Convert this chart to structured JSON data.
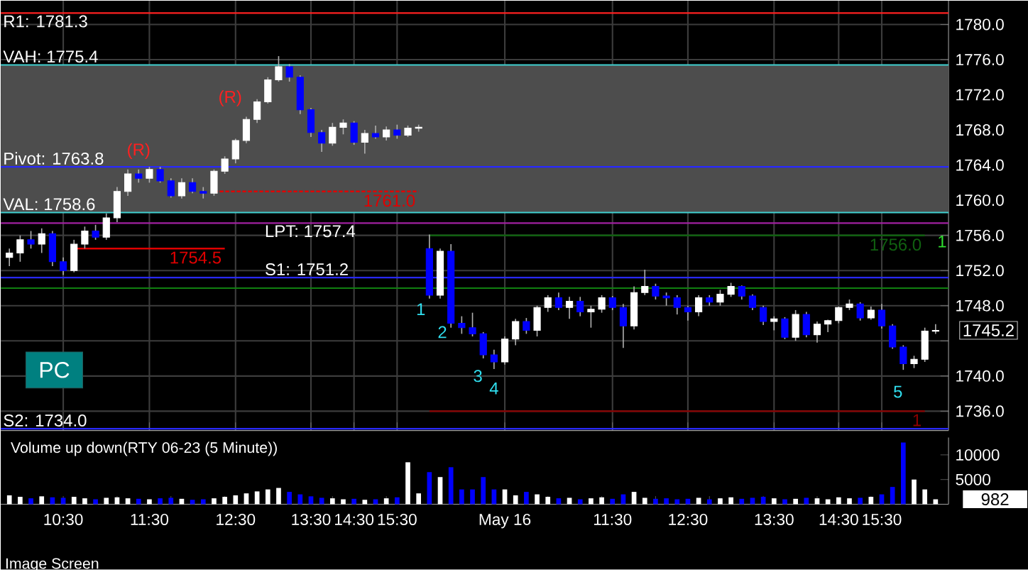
{
  "chart_data": [
    {
      "type": "candlestick",
      "categories": [
        null,
        null,
        null,
        null,
        null,
        "10:30",
        null,
        null,
        null,
        null,
        null,
        null,
        null,
        "11:30",
        null,
        null,
        null,
        null,
        null,
        null,
        null,
        "12:30",
        null,
        null,
        null,
        null,
        null,
        null,
        "13:30",
        null,
        null,
        null,
        "14:30",
        null,
        null,
        null,
        "15:30",
        null,
        null,
        null,
        null,
        null,
        null,
        null,
        null,
        null,
        "May 16",
        null,
        null,
        null,
        null,
        null,
        null,
        null,
        null,
        null,
        "11:30",
        null,
        null,
        null,
        null,
        null,
        null,
        "12:30",
        null,
        null,
        null,
        null,
        null,
        null,
        null,
        "13:30",
        null,
        null,
        null,
        null,
        null,
        "14:30",
        null,
        null,
        null,
        "15:30",
        null,
        null,
        null,
        null,
        null
      ],
      "ohlc": [
        [
          1753.5,
          1754.5,
          1752.5,
          1754
        ],
        [
          1754,
          1756,
          1753,
          1755.5
        ],
        [
          1755.5,
          1756.5,
          1754.5,
          1755
        ],
        [
          1755,
          1756.8,
          1754,
          1756.2
        ],
        [
          1756.2,
          1756.5,
          1752.5,
          1753
        ],
        [
          1753,
          1753.5,
          1751.5,
          1752
        ],
        [
          1752,
          1755.5,
          1751.8,
          1755
        ],
        [
          1755,
          1757,
          1754.5,
          1756.5
        ],
        [
          1756.5,
          1757.2,
          1755.5,
          1755.8
        ],
        [
          1755.8,
          1758.5,
          1755.5,
          1758
        ],
        [
          1758,
          1761.5,
          1757.5,
          1761
        ],
        [
          1761,
          1763.5,
          1760.5,
          1763
        ],
        [
          1763,
          1763.5,
          1762,
          1762.5
        ],
        [
          1762.5,
          1763.8,
          1762,
          1763.5
        ],
        [
          1763.5,
          1763.8,
          1762,
          1762.2
        ],
        [
          1762.2,
          1762.5,
          1760.3,
          1760.5
        ],
        [
          1760.5,
          1762.5,
          1760.2,
          1762
        ],
        [
          1762,
          1762.5,
          1760.8,
          1761
        ],
        [
          1761,
          1761.5,
          1760.2,
          1760.8
        ],
        [
          1760.8,
          1763.5,
          1760.5,
          1763.3
        ],
        [
          1763.3,
          1765,
          1763,
          1764.7
        ],
        [
          1764.7,
          1767,
          1764.2,
          1766.8
        ],
        [
          1766.8,
          1769.5,
          1766.5,
          1769.2
        ],
        [
          1769.2,
          1771.5,
          1768.8,
          1771.2
        ],
        [
          1771.2,
          1774,
          1771,
          1773.7
        ],
        [
          1773.7,
          1776.4,
          1773.5,
          1775.2
        ],
        [
          1775.2,
          1775.5,
          1773.5,
          1774
        ],
        [
          1774,
          1774.2,
          1769.8,
          1770.3
        ],
        [
          1770.3,
          1770.5,
          1767.2,
          1767.7
        ],
        [
          1767.7,
          1768,
          1765.5,
          1766.5
        ],
        [
          1766.5,
          1768.8,
          1766.2,
          1768.3
        ],
        [
          1768.3,
          1769.2,
          1767.5,
          1768.8
        ],
        [
          1768.8,
          1769,
          1766.3,
          1766.6
        ],
        [
          1766.6,
          1768,
          1765.3,
          1767.6
        ],
        [
          1767.6,
          1768.5,
          1767,
          1767.2
        ],
        [
          1767.2,
          1768.4,
          1766.8,
          1768
        ],
        [
          1768,
          1768.6,
          1767,
          1767.4
        ],
        [
          1767.4,
          1768.5,
          1767.2,
          1768.2
        ],
        [
          1768.2,
          1768.6,
          1767.8,
          1768.3
        ],
        [
          1754.5,
          1756.1,
          1748.8,
          1749.2
        ],
        [
          1749.2,
          1754.5,
          1748.8,
          1754.2
        ],
        [
          1754.2,
          1755,
          1745.5,
          1746
        ],
        [
          1746,
          1746.8,
          1744.8,
          1745.5
        ],
        [
          1745.5,
          1747.2,
          1744.5,
          1744.8
        ],
        [
          1744.8,
          1745,
          1742,
          1742.4
        ],
        [
          1742.4,
          1743,
          1740.8,
          1741.6
        ],
        [
          1741.6,
          1744.5,
          1741.3,
          1744.2
        ],
        [
          1744.2,
          1746.5,
          1743.5,
          1746.2
        ],
        [
          1746.2,
          1746.6,
          1744.8,
          1745.2
        ],
        [
          1745.2,
          1748,
          1744.5,
          1747.8
        ],
        [
          1747.8,
          1749.2,
          1747.3,
          1748.9
        ],
        [
          1748.9,
          1749.5,
          1747.5,
          1747.8
        ],
        [
          1747.8,
          1749,
          1746.5,
          1748.5
        ],
        [
          1748.5,
          1749,
          1746.8,
          1747.3
        ],
        [
          1747.3,
          1748,
          1745.5,
          1747.6
        ],
        [
          1747.6,
          1749.2,
          1747.2,
          1748.9
        ],
        [
          1748.9,
          1749.1,
          1747.5,
          1747.8
        ],
        [
          1747.8,
          1748.2,
          1743.2,
          1745.7
        ],
        [
          1745.7,
          1750.2,
          1745.3,
          1749.5
        ],
        [
          1749.5,
          1752.1,
          1749.2,
          1750.2
        ],
        [
          1750.2,
          1750.5,
          1748.7,
          1749.1
        ],
        [
          1749.1,
          1749.5,
          1748,
          1748.9
        ],
        [
          1748.9,
          1749.2,
          1747,
          1747.8
        ],
        [
          1747.8,
          1748,
          1746.3,
          1747.3
        ],
        [
          1747.3,
          1749.2,
          1746.8,
          1748.9
        ],
        [
          1748.9,
          1749.2,
          1748,
          1748.4
        ],
        [
          1748.4,
          1749.8,
          1748,
          1749.3
        ],
        [
          1749.3,
          1750.6,
          1749,
          1750.2
        ],
        [
          1750.2,
          1750.3,
          1748.7,
          1749.1
        ],
        [
          1749.1,
          1749.3,
          1747.5,
          1747.8
        ],
        [
          1747.8,
          1748,
          1745.8,
          1746.2
        ],
        [
          1746.2,
          1746.8,
          1745.2,
          1746.5
        ],
        [
          1746.5,
          1746.7,
          1744.2,
          1744.4
        ],
        [
          1744.4,
          1747.5,
          1744,
          1747
        ],
        [
          1747,
          1747.3,
          1744.4,
          1744.7
        ],
        [
          1744.7,
          1746.2,
          1743.8,
          1745.9
        ],
        [
          1745.9,
          1746.4,
          1745,
          1746.3
        ],
        [
          1746.3,
          1747.9,
          1746,
          1747.8
        ],
        [
          1747.8,
          1748.7,
          1747.5,
          1748.2
        ],
        [
          1748.2,
          1748.4,
          1746.3,
          1746.6
        ],
        [
          1746.6,
          1747.9,
          1746.4,
          1747.5
        ],
        [
          1747.5,
          1748.2,
          1745.4,
          1745.7
        ],
        [
          1745.7,
          1745.9,
          1743.1,
          1743.3
        ],
        [
          1743.3,
          1743.5,
          1740.7,
          1741.4
        ],
        [
          1741.4,
          1742.3,
          1740.9,
          1741.9
        ],
        [
          1741.9,
          1745.5,
          1741.6,
          1745.1
        ],
        [
          1745.1,
          1745.9,
          1744.8,
          1745.2
        ]
      ],
      "colors": [
        "#ffffff",
        "#ffffff",
        "#0000ff",
        "#ffffff",
        "#0000ff",
        "#0000ff",
        "#ffffff",
        "#ffffff",
        "#0000ff",
        "#ffffff",
        "#ffffff",
        "#ffffff",
        "#0000ff",
        "#ffffff",
        "#0000ff",
        "#0000ff",
        "#ffffff",
        "#0000ff",
        "#0000ff",
        "#ffffff",
        "#ffffff",
        "#ffffff",
        "#ffffff",
        "#ffffff",
        "#ffffff",
        "#ffffff",
        "#0000ff",
        "#0000ff",
        "#0000ff",
        "#0000ff",
        "#ffffff",
        "#ffffff",
        "#0000ff",
        "#ffffff",
        "#0000ff",
        "#ffffff",
        "#0000ff",
        "#ffffff",
        "#ffffff",
        "#0000ff",
        "#ffffff",
        "#0000ff",
        "#0000ff",
        "#0000ff",
        "#0000ff",
        "#0000ff",
        "#ffffff",
        "#ffffff",
        "#0000ff",
        "#ffffff",
        "#ffffff",
        "#0000ff",
        "#ffffff",
        "#0000ff",
        "#ffffff",
        "#ffffff",
        "#0000ff",
        "#0000ff",
        "#ffffff",
        "#ffffff",
        "#0000ff",
        "#0000ff",
        "#0000ff",
        "#0000ff",
        "#ffffff",
        "#0000ff",
        "#ffffff",
        "#ffffff",
        "#0000ff",
        "#0000ff",
        "#0000ff",
        "#ffffff",
        "#0000ff",
        "#ffffff",
        "#0000ff",
        "#ffffff",
        "#ffffff",
        "#ffffff",
        "#ffffff",
        "#0000ff",
        "#ffffff",
        "#0000ff",
        "#0000ff",
        "#0000ff",
        "#ffffff",
        "#ffffff",
        "#ffffff"
      ],
      "ylim": [
        1733.8,
        1782.7
      ],
      "yticks": [
        {
          "value": 1736,
          "label": "1736.0"
        },
        {
          "value": 1740,
          "label": "1740.0"
        },
        {
          "value": 1744,
          "label": null
        },
        {
          "value": 1748,
          "label": "1748.0"
        },
        {
          "value": 1752,
          "label": "1752.0"
        },
        {
          "value": 1756,
          "label": "1756.0"
        },
        {
          "value": 1760,
          "label": "1760.0"
        },
        {
          "value": 1764,
          "label": "1764.0"
        },
        {
          "value": 1768,
          "label": "1768.0"
        },
        {
          "value": 1772,
          "label": "1772.0"
        },
        {
          "value": 1776,
          "label": "1776.0"
        },
        {
          "value": 1780,
          "label": "1780.0"
        }
      ],
      "grid": true,
      "bands": [
        {
          "axis": "y",
          "from": 1758.6,
          "to": 1775.4,
          "color": "#4d4d4d"
        }
      ],
      "ref_lines": [
        {
          "axis": "y",
          "value": 1781.3,
          "label": "R1: 1781.3",
          "color": "#ff2020"
        },
        {
          "axis": "y",
          "value": 1775.4,
          "label": "VAH: 1775.4",
          "color": "#40d0d0"
        },
        {
          "axis": "y",
          "value": 1763.8,
          "label": "Pivot: 1763.8",
          "color": "#2828ff"
        },
        {
          "axis": "y",
          "value": 1758.6,
          "label": "VAL: 1758.6",
          "color": "#40d0d0"
        },
        {
          "axis": "y",
          "value": 1757.4,
          "label": "LPT: 1757.4",
          "color": "#a020a0"
        },
        {
          "axis": "y",
          "value": 1751.2,
          "label": "S1: 1751.2",
          "color": "#2828ff"
        },
        {
          "axis": "y",
          "value": 1750.0,
          "color": "#108010"
        },
        {
          "axis": "y",
          "value": 1734.0,
          "label": "S2: 1734.0",
          "color": "#2828ff"
        }
      ],
      "series": [
        {
          "type": "line",
          "name": "1754.5",
          "color": "#e00000",
          "line_style": "solid",
          "values": [
            null,
            null,
            null,
            null,
            null,
            null,
            1754.5,
            1754.5,
            1754.5,
            1754.5,
            1754.5,
            1754.5,
            1754.5,
            1754.5,
            1754.5,
            1754.5,
            1754.5,
            1754.5,
            1754.5,
            1754.5,
            1754.5,
            null,
            null,
            null,
            null,
            null,
            null,
            null,
            null,
            null,
            null,
            null,
            null,
            null,
            null,
            null,
            null,
            null,
            null,
            null,
            null,
            null,
            null,
            null,
            null,
            null,
            null,
            null,
            null,
            null,
            null,
            null,
            null,
            null,
            null,
            null,
            null,
            null,
            null,
            null,
            null,
            null,
            null,
            null,
            null,
            null,
            null,
            null,
            null,
            null,
            null,
            null,
            null,
            null,
            null,
            null,
            null,
            null,
            null,
            null,
            null,
            null,
            null,
            null,
            null,
            null,
            null
          ]
        },
        {
          "type": "line",
          "name": "1761.0",
          "color": "#e00000",
          "line_style": "dashed",
          "values": [
            null,
            null,
            null,
            null,
            null,
            null,
            null,
            null,
            null,
            null,
            null,
            null,
            null,
            null,
            null,
            null,
            null,
            null,
            null,
            1761,
            1761,
            1761,
            1761,
            1761,
            1761,
            1761,
            1761,
            1761,
            1761,
            1761,
            1761,
            1761,
            1761,
            1761,
            1761,
            1761,
            1761,
            1761,
            1761,
            null,
            null,
            null,
            null,
            null,
            null,
            null,
            null,
            null,
            null,
            null,
            null,
            null,
            null,
            null,
            null,
            null,
            null,
            null,
            null,
            null,
            null,
            null,
            null,
            null,
            null,
            null,
            null,
            null,
            null,
            null,
            null,
            null,
            null,
            null,
            null,
            null,
            null,
            null,
            null,
            null,
            null,
            null,
            null,
            null,
            null,
            null,
            null
          ]
        },
        {
          "type": "line",
          "name": "1756.0",
          "color": "#106010",
          "line_style": "solid",
          "values": [
            null,
            null,
            null,
            null,
            null,
            null,
            null,
            null,
            null,
            null,
            null,
            null,
            null,
            null,
            null,
            null,
            null,
            null,
            null,
            null,
            null,
            null,
            null,
            null,
            null,
            null,
            null,
            null,
            null,
            null,
            null,
            null,
            null,
            null,
            null,
            null,
            null,
            null,
            null,
            1756,
            1756,
            1756,
            1756,
            1756,
            1756,
            1756,
            1756,
            1756,
            1756,
            1756,
            1756,
            1756,
            1756,
            1756,
            1756,
            1756,
            1756,
            1756,
            1756,
            1756,
            1756,
            1756,
            1756,
            1756,
            1756,
            1756,
            1756,
            1756,
            1756,
            1756,
            1756,
            1756,
            1756,
            1756,
            1756,
            1756,
            1756,
            1756,
            1756,
            1756,
            1756,
            1756,
            1756,
            1756,
            1756,
            1756,
            null
          ]
        },
        {
          "type": "line",
          "name": "1",
          "color": "#8b0000",
          "line_style": "solid",
          "values": [
            null,
            null,
            null,
            null,
            null,
            null,
            null,
            null,
            null,
            null,
            null,
            null,
            null,
            null,
            null,
            null,
            null,
            null,
            null,
            null,
            null,
            null,
            null,
            null,
            null,
            null,
            null,
            null,
            null,
            null,
            null,
            null,
            null,
            null,
            null,
            null,
            null,
            null,
            null,
            1736,
            1736,
            1736,
            1736,
            1736,
            1736,
            1736,
            1736,
            1736,
            1736,
            1736,
            1736,
            1736,
            1736,
            1736,
            1736,
            1736,
            1736,
            1736,
            1736,
            1736,
            1736,
            1736,
            1736,
            1736,
            1736,
            1736,
            1736,
            1736,
            1736,
            1736,
            1736,
            1736,
            1736,
            1736,
            1736,
            1736,
            1736,
            1736,
            1736,
            1736,
            1736,
            1736,
            1736,
            1736,
            1736,
            1736,
            null
          ]
        }
      ],
      "annotations": [
        "PC",
        "(R)",
        "(R)",
        "1",
        "2",
        "3",
        "4",
        "5",
        "1",
        "1745.2"
      ]
    },
    {
      "type": "bar",
      "title": "Volume up down(RTY 06-23 (5 Minute))",
      "tick_labels": "y",
      "categories": [
        null,
        null,
        null,
        null,
        null,
        null,
        null,
        null,
        null,
        null,
        null,
        null,
        null,
        null,
        null,
        null,
        null,
        null,
        null,
        null,
        null,
        null,
        null,
        null,
        null,
        null,
        null,
        null,
        null,
        null,
        null,
        null,
        null,
        null,
        null,
        null,
        null,
        null,
        null,
        null,
        null,
        null,
        null,
        null,
        null,
        null,
        null,
        null,
        null,
        null,
        null,
        null,
        null,
        null,
        null,
        null,
        null,
        null,
        null,
        null,
        null,
        null,
        null,
        null,
        null,
        null,
        null,
        null,
        null,
        null,
        null,
        null,
        null,
        null,
        null,
        null,
        null,
        null,
        null,
        null,
        null,
        null,
        null,
        null,
        null,
        null,
        null
      ],
      "values": [
        1800,
        1500,
        1200,
        1600,
        1400,
        1300,
        1500,
        1200,
        1000,
        1300,
        1400,
        1200,
        1100,
        1000,
        1200,
        1300,
        1100,
        900,
        1000,
        1200,
        1500,
        1800,
        2200,
        2600,
        3000,
        3300,
        2500,
        2000,
        1600,
        1300,
        1200,
        1000,
        1100,
        900,
        1000,
        1200,
        1400,
        8500,
        2200,
        6500,
        5500,
        7500,
        3000,
        3000,
        5500,
        3000,
        3000,
        1800,
        2500,
        2000,
        1500,
        1200,
        1300,
        1000,
        1200,
        1400,
        1100,
        2000,
        2500,
        1300,
        1100,
        1200,
        1000,
        1100,
        1300,
        1000,
        1200,
        1400,
        1100,
        1300,
        1500,
        1200,
        1000,
        1100,
        1300,
        1200,
        1000,
        1400,
        1200,
        1300,
        1500,
        2000,
        3500,
        12500,
        5000,
        3000,
        1000
      ],
      "colors": [
        "#ffffff",
        "#ffffff",
        "#0000ff",
        "#ffffff",
        "#0000ff",
        "#0000ff",
        "#ffffff",
        "#ffffff",
        "#0000ff",
        "#ffffff",
        "#ffffff",
        "#ffffff",
        "#0000ff",
        "#ffffff",
        "#0000ff",
        "#0000ff",
        "#ffffff",
        "#0000ff",
        "#0000ff",
        "#ffffff",
        "#ffffff",
        "#ffffff",
        "#ffffff",
        "#ffffff",
        "#ffffff",
        "#ffffff",
        "#0000ff",
        "#0000ff",
        "#0000ff",
        "#0000ff",
        "#ffffff",
        "#ffffff",
        "#0000ff",
        "#ffffff",
        "#0000ff",
        "#ffffff",
        "#0000ff",
        "#ffffff",
        "#ffffff",
        "#0000ff",
        "#ffffff",
        "#0000ff",
        "#0000ff",
        "#0000ff",
        "#0000ff",
        "#0000ff",
        "#ffffff",
        "#ffffff",
        "#0000ff",
        "#ffffff",
        "#ffffff",
        "#0000ff",
        "#ffffff",
        "#0000ff",
        "#ffffff",
        "#ffffff",
        "#0000ff",
        "#0000ff",
        "#ffffff",
        "#ffffff",
        "#0000ff",
        "#0000ff",
        "#0000ff",
        "#0000ff",
        "#ffffff",
        "#0000ff",
        "#ffffff",
        "#ffffff",
        "#0000ff",
        "#0000ff",
        "#0000ff",
        "#ffffff",
        "#0000ff",
        "#ffffff",
        "#0000ff",
        "#ffffff",
        "#ffffff",
        "#ffffff",
        "#ffffff",
        "#0000ff",
        "#ffffff",
        "#0000ff",
        "#0000ff",
        "#0000ff",
        "#ffffff",
        "#ffffff",
        "#ffffff"
      ],
      "ylim": [
        0,
        13500
      ],
      "yticks": [
        5000,
        10000
      ],
      "annotations": [
        "982",
        "Image Screen"
      ]
    }
  ]
}
